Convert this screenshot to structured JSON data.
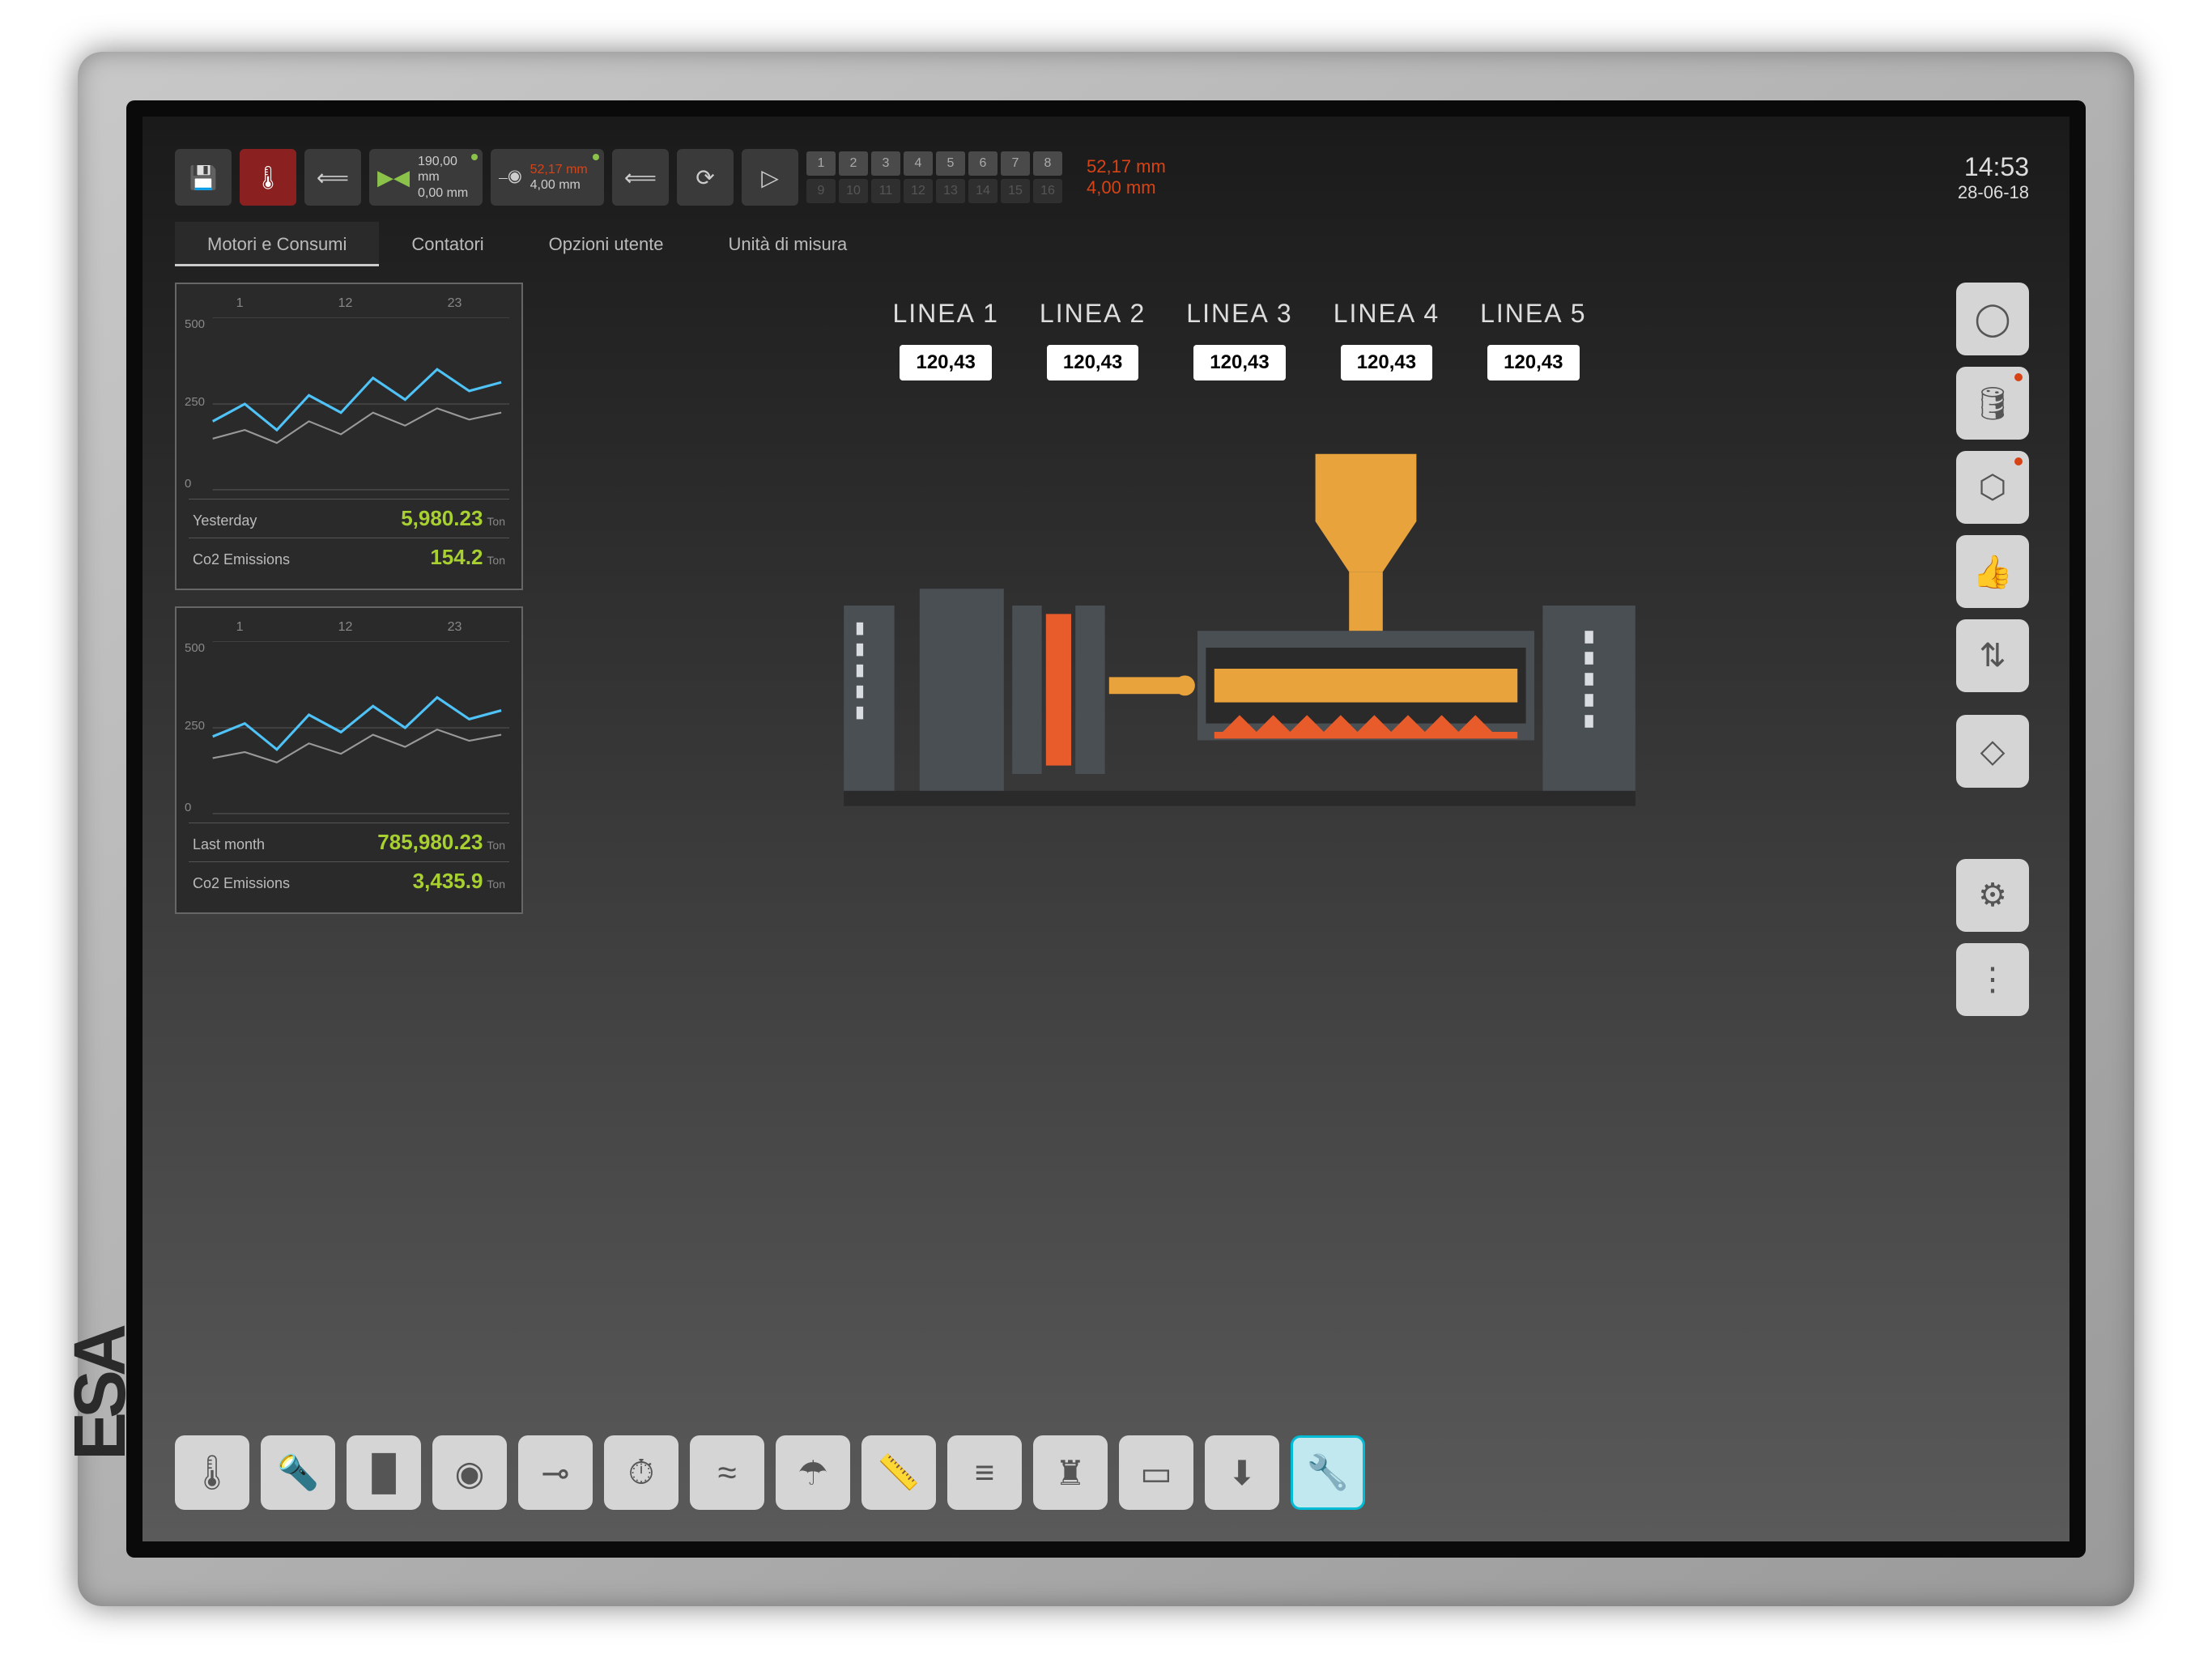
{
  "brand": "ESA",
  "toolbar": {
    "measures1": {
      "v1": "190,00 mm",
      "v2": "0,00 mm"
    },
    "measures2": {
      "v1": "52,17 mm",
      "v2": "4,00 mm",
      "color1": "#d84315",
      "color2": "#cccccc"
    },
    "programs_row1": [
      "1",
      "2",
      "3",
      "4",
      "5",
      "6",
      "7",
      "8"
    ],
    "programs_row2": [
      "9",
      "10",
      "11",
      "12",
      "13",
      "14",
      "15",
      "16"
    ],
    "meas_right": {
      "v1": "52,17 mm",
      "v2": "4,00 mm",
      "color1": "#d84315",
      "color2": "#d84315"
    },
    "time": "14:53",
    "date": "28-06-18"
  },
  "tabs": [
    "Motori e Consumi",
    "Contatori",
    "Opzioni utente",
    "Unità di misura"
  ],
  "charts": {
    "chart1": {
      "x_labels": [
        "1",
        "12",
        "23"
      ],
      "y_labels": [
        "500",
        "250",
        "0"
      ],
      "line1_color": "#4fc3f7",
      "line2_color": "#999999",
      "stats": [
        {
          "label": "Yesterday",
          "value": "5,980.23",
          "unit": "Ton"
        },
        {
          "label": "Co2 Emissions",
          "value": "154.2",
          "unit": "Ton"
        }
      ]
    },
    "chart2": {
      "x_labels": [
        "1",
        "12",
        "23"
      ],
      "y_labels": [
        "500",
        "250",
        "0"
      ],
      "line1_color": "#4fc3f7",
      "line2_color": "#999999",
      "stats": [
        {
          "label": "Last month",
          "value": "785,980.23",
          "unit": "Ton"
        },
        {
          "label": "Co2 Emissions",
          "value": "3,435.9",
          "unit": "Ton"
        }
      ]
    }
  },
  "lines": [
    {
      "name": "LINEA 1",
      "value": "120,43"
    },
    {
      "name": "LINEA 2",
      "value": "120,43"
    },
    {
      "name": "LINEA 3",
      "value": "120,43"
    },
    {
      "name": "LINEA 4",
      "value": "120,43"
    },
    {
      "name": "LINEA 5",
      "value": "120,43"
    }
  ],
  "diagram": {
    "hopper_color": "#e8a33d",
    "melt_color": "#e85c2b",
    "body_color": "#4a4f54",
    "stripe_color": "#d9dce0"
  },
  "side_icons": [
    "user",
    "oil",
    "stop",
    "thumb",
    "transfer",
    "warn",
    "gear",
    "more"
  ],
  "bottom_icons": [
    "temp",
    "flashlight",
    "gate",
    "dryer",
    "inject",
    "timer",
    "air",
    "shower",
    "ruler",
    "layers",
    "pins",
    "memory",
    "down",
    "wrench"
  ]
}
